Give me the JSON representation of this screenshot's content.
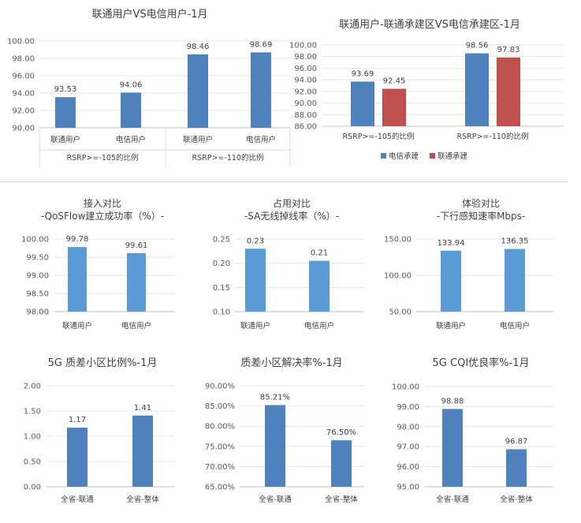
{
  "chart_data": [
    {
      "type": "bar",
      "title": "联通用户VS电信用户-1月",
      "categories": [
        "联通用户",
        "电信用户",
        "联通用户",
        "电信用户"
      ],
      "groups": [
        "RSRP>=-105的比例",
        "RSRP>=-110的比例"
      ],
      "values": [
        93.53,
        94.06,
        98.46,
        98.69
      ],
      "value_labels": [
        "93.53",
        "94.06",
        "98.46",
        "98.69"
      ],
      "yticks": [
        "100.00",
        "98.00",
        "96.00",
        "94.00",
        "92.00",
        "90.00"
      ],
      "ylim": [
        90,
        100
      ],
      "colors": [
        "#4f81bd"
      ]
    },
    {
      "type": "bar",
      "title": "联通用户-联通承建区VS电信承建区-1月",
      "categories": [
        "RSRP>=-105的比例",
        "RSRP>=-110的比例"
      ],
      "series": [
        {
          "name": "电信承建",
          "values": [
            93.69,
            98.56
          ],
          "labels": [
            "93.69",
            "98.56"
          ]
        },
        {
          "name": "联通承建",
          "values": [
            92.45,
            97.83
          ],
          "labels": [
            "92.45",
            "97.83"
          ]
        }
      ],
      "yticks": [
        "100.00",
        "98.00",
        "96.00",
        "94.00",
        "92.00",
        "90.00",
        "88.00",
        "86.00"
      ],
      "ylim": [
        86,
        100
      ],
      "legend": "bottom",
      "colors": [
        "#4f81bd",
        "#c0504d"
      ]
    },
    {
      "type": "bar",
      "title": [
        "接入对比",
        "-QoSFlow建立成功率（%）-"
      ],
      "categories": [
        "联通用户",
        "电信用户"
      ],
      "values": [
        99.78,
        99.61
      ],
      "value_labels": [
        "99.78",
        "99.61"
      ],
      "yticks": [
        "100.00",
        "99.50",
        "99.00",
        "98.50",
        "98.00"
      ],
      "ylim": [
        98,
        100
      ],
      "colors": [
        "#5b9bd5"
      ]
    },
    {
      "type": "bar",
      "title": [
        "占用对比",
        "-SA无线掉线率（%）-"
      ],
      "categories": [
        "联通用户",
        "电信用户"
      ],
      "values": [
        0.23,
        0.205
      ],
      "value_labels": [
        "0.23",
        "0.21"
      ],
      "yticks": [
        "0.25",
        "0.20",
        "0.15",
        "0.10"
      ],
      "ylim": [
        0.1,
        0.25
      ],
      "colors": [
        "#5b9bd5"
      ]
    },
    {
      "type": "bar",
      "title": [
        "体验对比",
        "-下行感知速率Mbps-"
      ],
      "categories": [
        "联通用户",
        "电信用户"
      ],
      "values": [
        133.94,
        136.35
      ],
      "value_labels": [
        "133.94",
        "136.35"
      ],
      "yticks": [
        "150.00",
        "100.00",
        "50.00"
      ],
      "ylim": [
        50,
        150
      ],
      "colors": [
        "#5b9bd5"
      ]
    },
    {
      "type": "bar",
      "title": "5G 质差小区比例%-1月",
      "categories": [
        "全省-联通",
        "全省-整体"
      ],
      "values": [
        1.17,
        1.41
      ],
      "value_labels": [
        "1.17",
        "1.41"
      ],
      "yticks": [
        "2.00",
        "1.50",
        "1.00",
        "0.50",
        "0.00"
      ],
      "ylim": [
        0,
        2
      ],
      "colors": [
        "#4f81bd"
      ]
    },
    {
      "type": "bar",
      "title": "质差小区解决率%-1月",
      "categories": [
        "全省-联通",
        "全省-整体"
      ],
      "values": [
        85.21,
        76.5
      ],
      "value_labels": [
        "85.21%",
        "76.50%"
      ],
      "yticks": [
        "90.00%",
        "85.00%",
        "80.00%",
        "75.00%",
        "70.00%",
        "65.00%"
      ],
      "ylim": [
        65,
        90
      ],
      "colors": [
        "#4f81bd"
      ]
    },
    {
      "type": "bar",
      "title": "5G CQI优良率%-1月",
      "categories": [
        "全省-联通",
        "全省-整体"
      ],
      "values": [
        98.88,
        96.87
      ],
      "value_labels": [
        "98.88",
        "96.87"
      ],
      "yticks": [
        "100.00",
        "99.00",
        "98.00",
        "97.00",
        "96.00",
        "95.00"
      ],
      "ylim": [
        95,
        100
      ],
      "colors": [
        "#4f81bd"
      ]
    }
  ]
}
